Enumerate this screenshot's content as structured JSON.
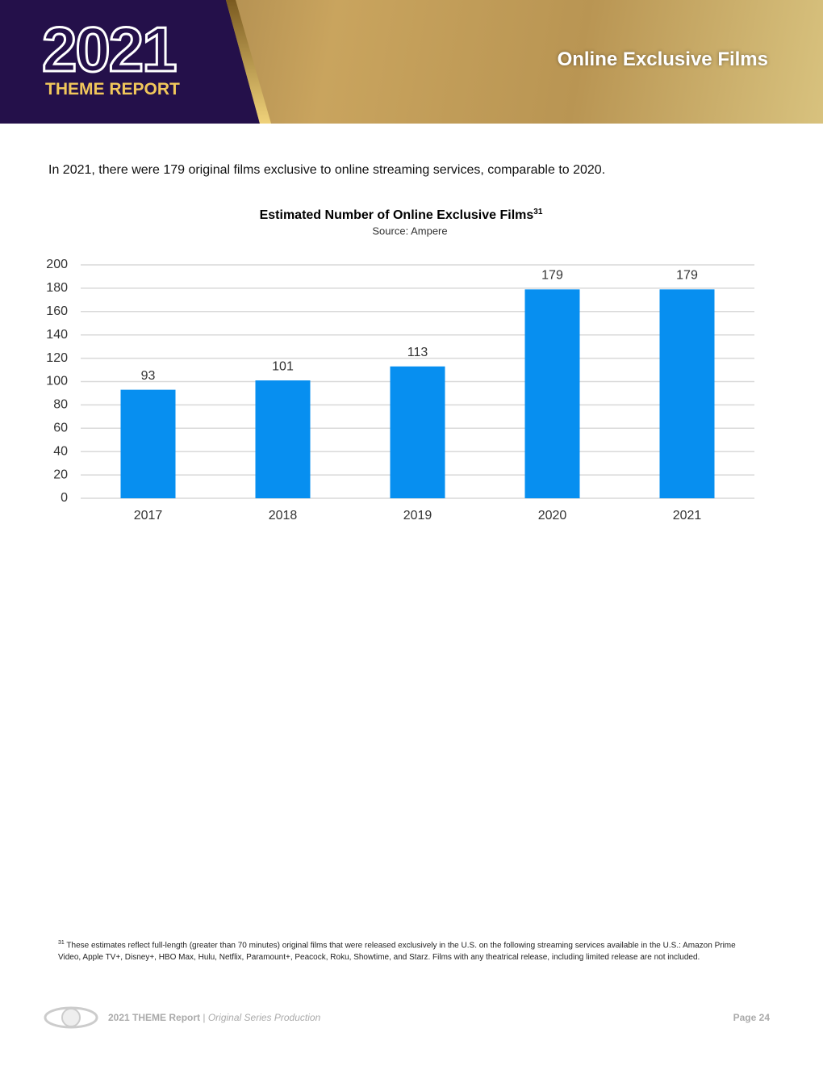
{
  "header": {
    "year": "2021",
    "report": "THEME REPORT",
    "section": "Online Exclusive Films"
  },
  "intro": "In 2021, there were 179 original films exclusive to online streaming services, comparable to 2020.",
  "chart_data": {
    "type": "bar",
    "title": "Estimated Number of Online Exclusive Films",
    "title_note": "31",
    "subtitle": "Source: Ampere",
    "categories": [
      "2017",
      "2018",
      "2019",
      "2020",
      "2021"
    ],
    "values": [
      93,
      101,
      113,
      179,
      179
    ],
    "color": "#078ff0",
    "ylim": [
      0,
      200
    ],
    "yticks": [
      0,
      20,
      40,
      60,
      80,
      100,
      120,
      140,
      160,
      180,
      200
    ],
    "grid": true
  },
  "footnote": {
    "marker": "31",
    "text": "These estimates reflect full-length (greater than 70 minutes) original films that were released exclusively in the U.S. on the following streaming services available in the U.S.: Amazon Prime Video, Apple TV+, Disney+, HBO Max, Hulu, Netflix, Paramount+, Peacock, Roku, Showtime, and Starz. Films with any theatrical release, including limited release are not included."
  },
  "footer": {
    "report": "2021 THEME Report",
    "separator": "|",
    "section": "Original Series Production",
    "page": "Page 24"
  }
}
